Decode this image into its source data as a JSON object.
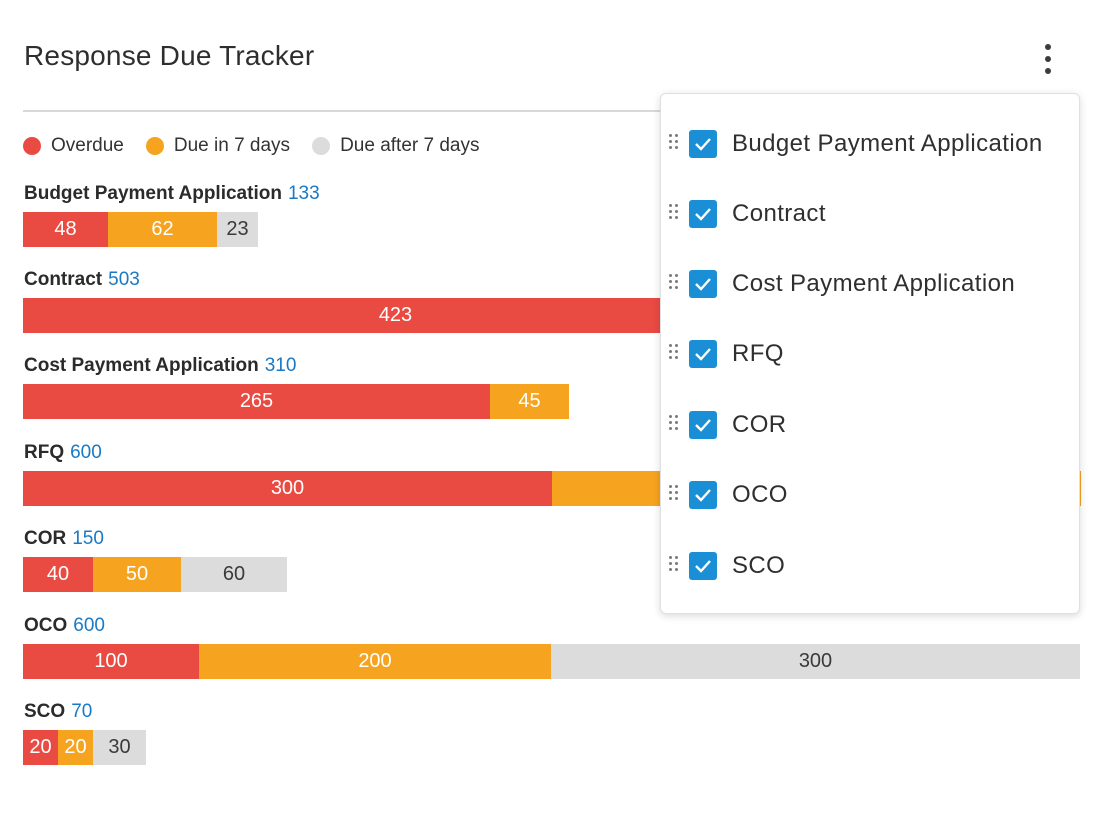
{
  "title": "Response Due Tracker",
  "colors": {
    "overdue": "#e94b43",
    "due7": "#f6a31f",
    "after": "#dcdcdc",
    "total": "#1a79c4",
    "checkbox": "#1a8fd6"
  },
  "legend": [
    {
      "label": "Overdue",
      "key": "overdue"
    },
    {
      "label": "Due in 7 days",
      "key": "due7"
    },
    {
      "label": "Due after 7 days",
      "key": "after"
    }
  ],
  "chart_data": {
    "type": "bar",
    "orientation": "horizontal-stacked",
    "series_names": [
      "Overdue",
      "Due in 7 days",
      "Due after 7 days"
    ],
    "scale_max": 600,
    "rows": [
      {
        "name": "Budget Payment Application",
        "total": 133,
        "values": [
          48,
          62,
          23
        ]
      },
      {
        "name": "Contract",
        "total": 503,
        "values": [
          423,
          null,
          null
        ]
      },
      {
        "name": "Cost Payment Application",
        "total": 310,
        "values": [
          265,
          45,
          0
        ]
      },
      {
        "name": "RFQ",
        "total": 600,
        "values": [
          300,
          null,
          null
        ]
      },
      {
        "name": "COR",
        "total": 150,
        "values": [
          40,
          50,
          60
        ]
      },
      {
        "name": "OCO",
        "total": 600,
        "values": [
          100,
          200,
          300
        ]
      },
      {
        "name": "SCO",
        "total": 70,
        "values": [
          20,
          20,
          30
        ]
      }
    ]
  },
  "dropdown": {
    "items": [
      {
        "label": "Budget Payment Application",
        "checked": true
      },
      {
        "label": "Contract",
        "checked": true
      },
      {
        "label": "Cost Payment Application",
        "checked": true
      },
      {
        "label": "RFQ",
        "checked": true
      },
      {
        "label": "COR",
        "checked": true
      },
      {
        "label": "OCO",
        "checked": true
      },
      {
        "label": "SCO",
        "checked": true
      }
    ]
  }
}
